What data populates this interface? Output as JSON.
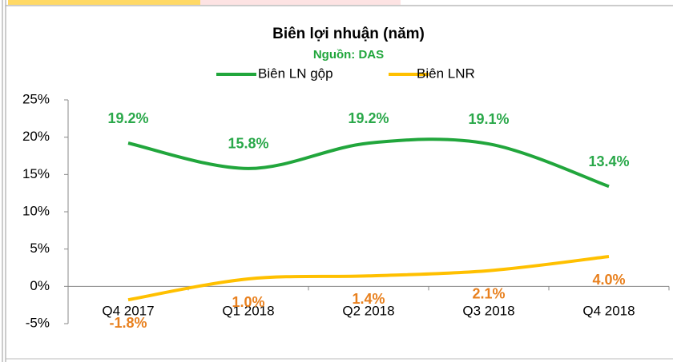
{
  "chart_data": {
    "type": "line",
    "title": "Biên lợi nhuận (năm)",
    "subtitle": "Nguồn: DAS",
    "categories": [
      "Q4 2017",
      "Q1 2018",
      "Q2 2018",
      "Q3 2018",
      "Q4 2018"
    ],
    "series": [
      {
        "name": "Biên LN gộp",
        "color": "#21a63c",
        "label_color": "#2aa84a",
        "values": [
          19.2,
          15.8,
          19.2,
          19.1,
          13.4
        ],
        "value_labels": [
          "19.2%",
          "15.8%",
          "19.2%",
          "19.1%",
          "13.4%"
        ]
      },
      {
        "name": "Biên LNR",
        "color": "#ffc000",
        "label_color": "#e8801e",
        "values": [
          -1.8,
          1.0,
          1.4,
          2.1,
          4.0
        ],
        "value_labels": [
          "-1.8%",
          "1.0%",
          "1.4%",
          "2.1%",
          "4.0%"
        ]
      }
    ],
    "ylim": [
      -5,
      25
    ],
    "yticks": [
      {
        "value": -5,
        "label": "-5%"
      },
      {
        "value": 0,
        "label": "0%"
      },
      {
        "value": 5,
        "label": "5%"
      },
      {
        "value": 10,
        "label": "10%"
      },
      {
        "value": 15,
        "label": "15%"
      },
      {
        "value": 20,
        "label": "20%"
      },
      {
        "value": 25,
        "label": "25%"
      }
    ],
    "smooth": true
  }
}
